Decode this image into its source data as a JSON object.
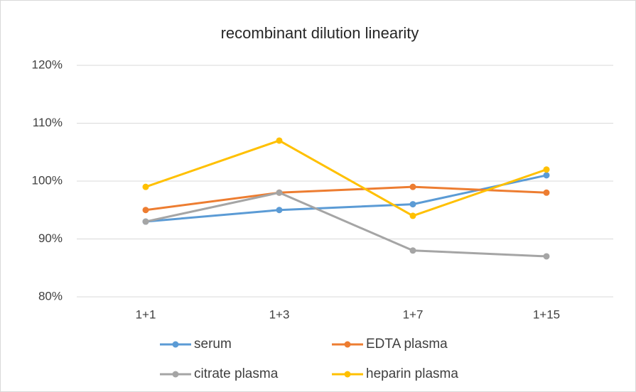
{
  "chart_data": {
    "type": "line",
    "title": "recombinant dilution linearity",
    "categories": [
      "1+1",
      "1+3",
      "1+7",
      "1+15"
    ],
    "series": [
      {
        "name": "serum",
        "color": "#5b9bd5",
        "values": [
          93,
          95,
          96,
          101
        ]
      },
      {
        "name": "EDTA plasma",
        "color": "#ed7d31",
        "values": [
          95,
          98,
          99,
          98
        ]
      },
      {
        "name": "citrate plasma",
        "color": "#a5a5a5",
        "values": [
          93,
          98,
          88,
          87
        ]
      },
      {
        "name": "heparin plasma",
        "color": "#ffc000",
        "values": [
          99,
          107,
          94,
          102
        ]
      }
    ],
    "ylim": [
      80,
      120
    ],
    "yticks": [
      {
        "value": 80,
        "label": "80%"
      },
      {
        "value": 90,
        "label": "90%"
      },
      {
        "value": 100,
        "label": "100%"
      },
      {
        "value": 110,
        "label": "110%"
      },
      {
        "value": 120,
        "label": "120%"
      }
    ],
    "grid": true
  }
}
